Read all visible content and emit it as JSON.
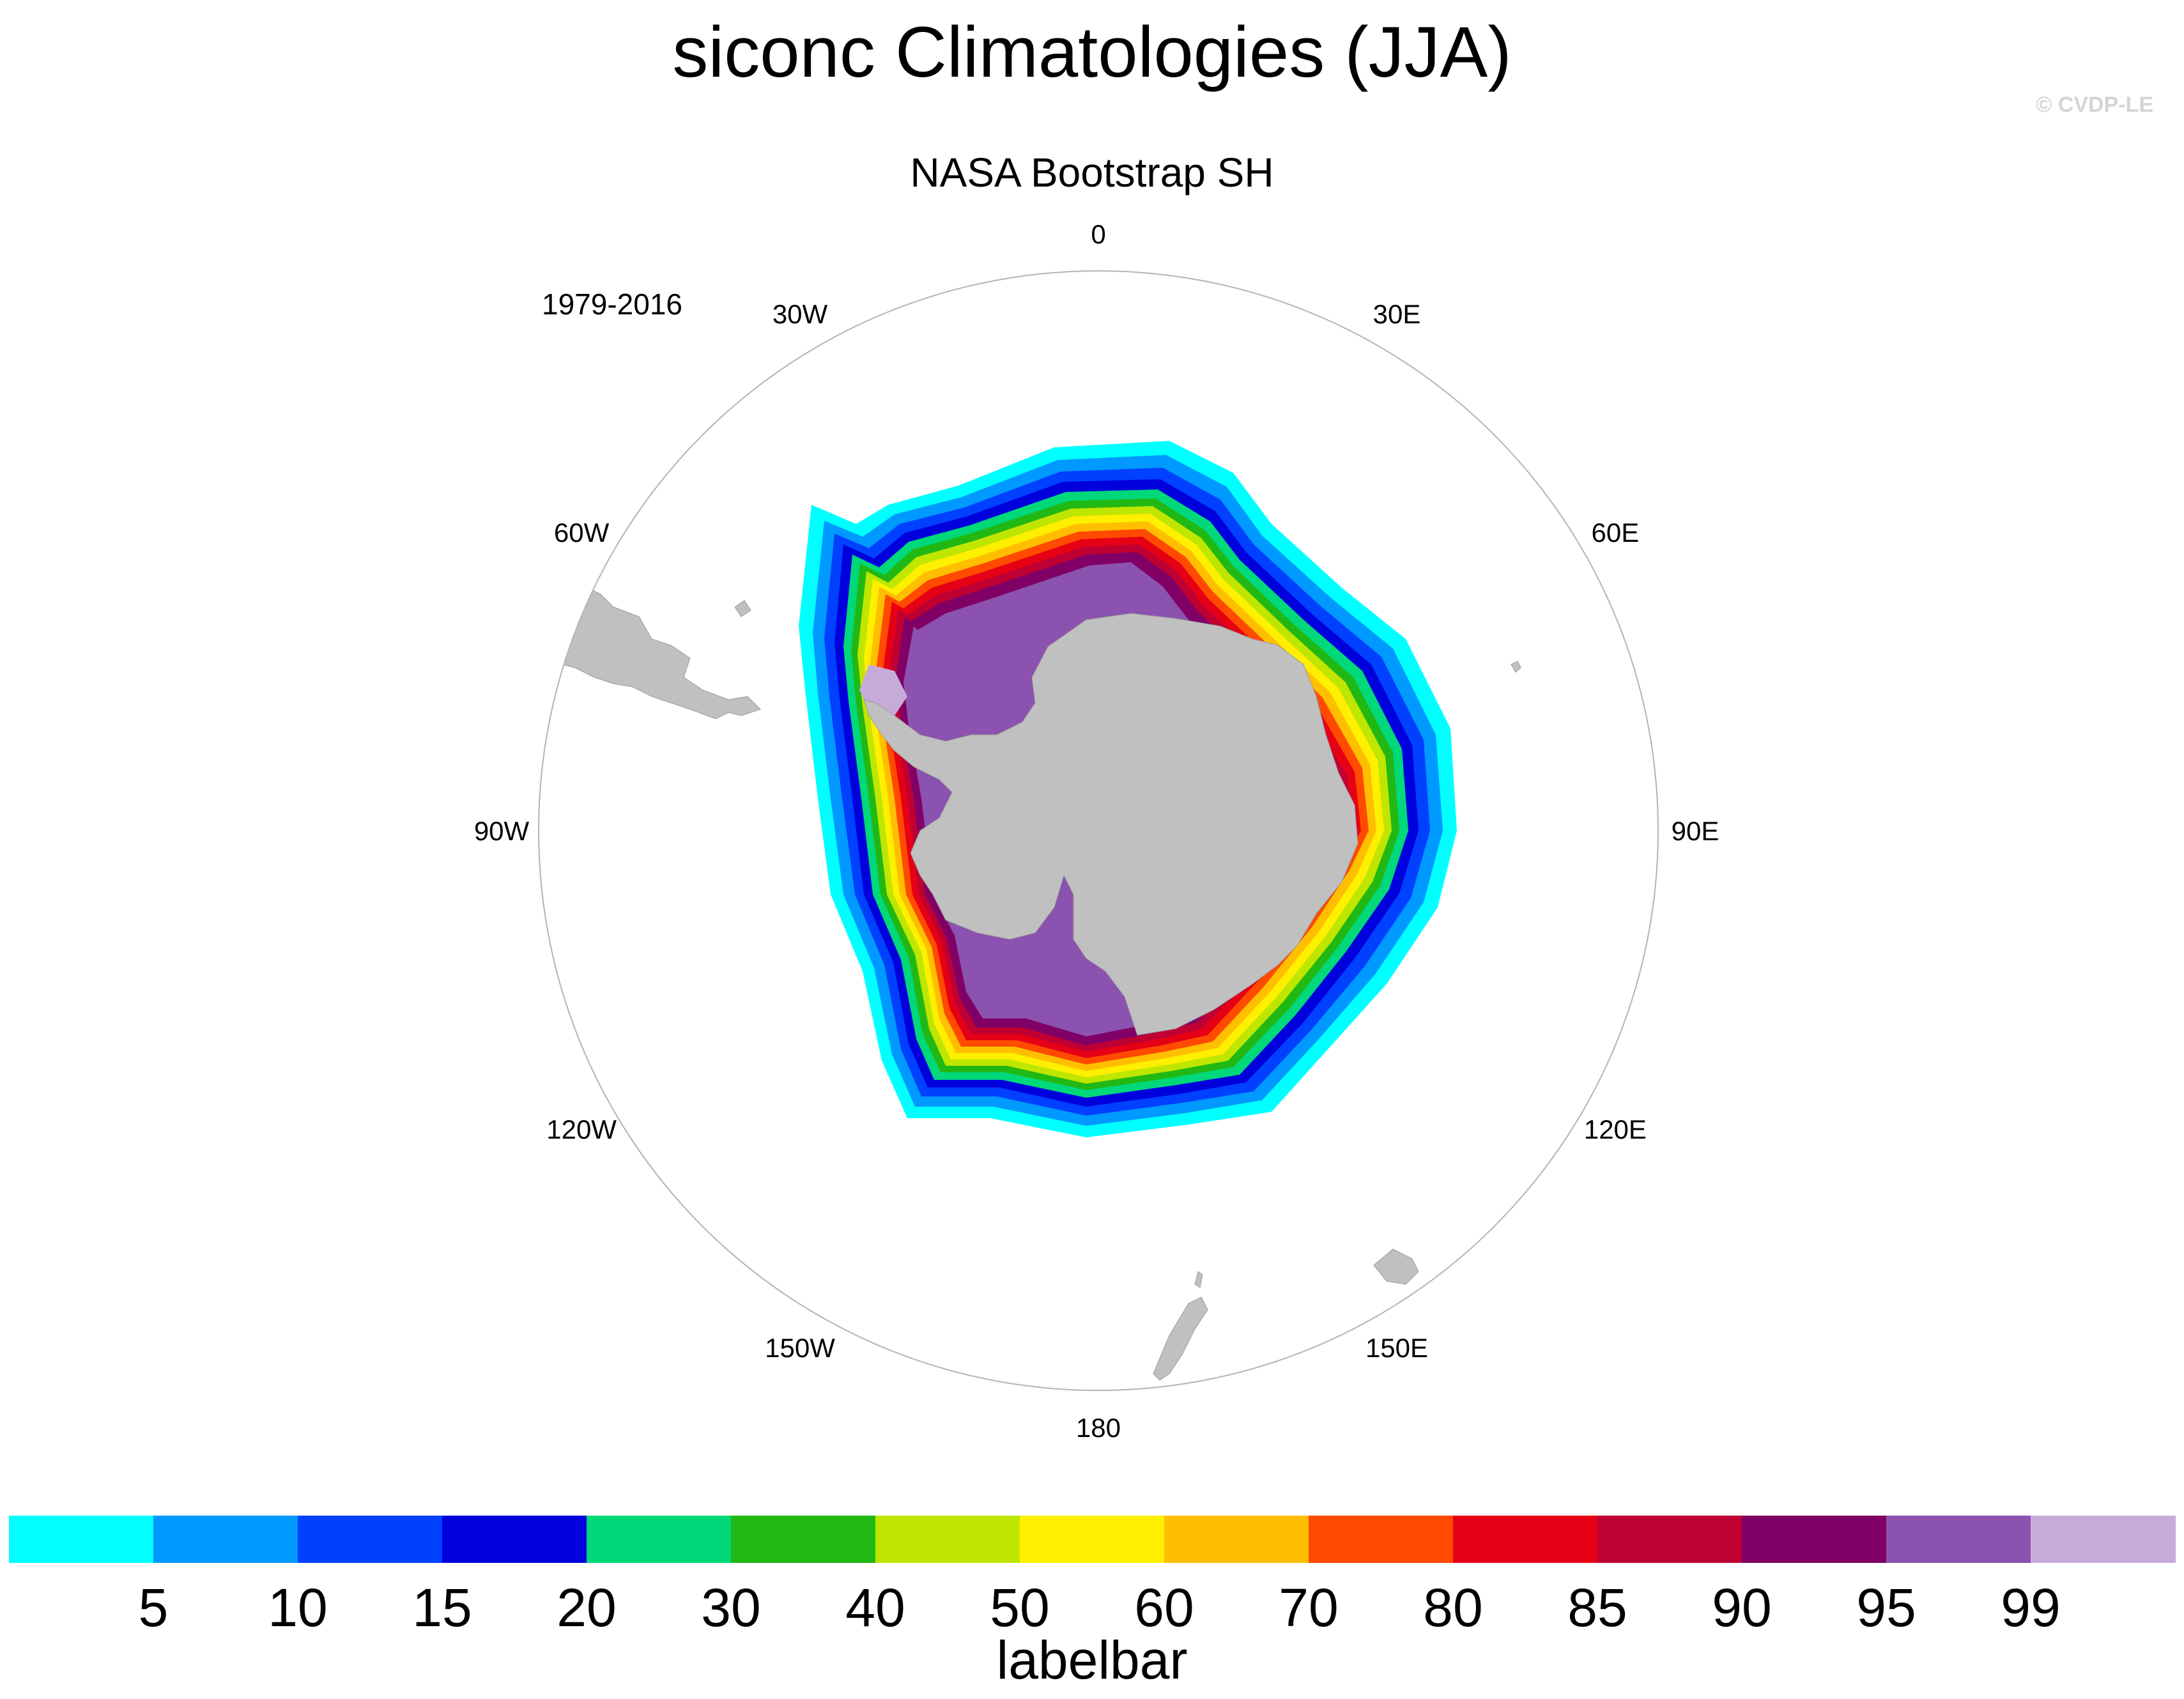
{
  "title": "siconc Climatologies (JJA)",
  "watermark": "© CVDP-LE",
  "subtitle": "NASA Bootstrap SH",
  "period": "1979-2016",
  "longitude_labels": [
    {
      "text": "0",
      "lon": 0
    },
    {
      "text": "30E",
      "lon": 30
    },
    {
      "text": "60E",
      "lon": 60
    },
    {
      "text": "90E",
      "lon": 90
    },
    {
      "text": "120E",
      "lon": 120
    },
    {
      "text": "150E",
      "lon": 150
    },
    {
      "text": "180",
      "lon": 180
    },
    {
      "text": "150W",
      "lon": -150
    },
    {
      "text": "120W",
      "lon": -120
    },
    {
      "text": "90W",
      "lon": -90
    },
    {
      "text": "60W",
      "lon": -60
    },
    {
      "text": "30W",
      "lon": -30
    }
  ],
  "colorbar": {
    "title": "labelbar",
    "ticks": [
      "5",
      "10",
      "15",
      "20",
      "30",
      "40",
      "50",
      "60",
      "70",
      "80",
      "85",
      "90",
      "95",
      "99"
    ],
    "colors": [
      "#00ffff",
      "#0099ff",
      "#0040ff",
      "#0000dd",
      "#00d87a",
      "#22b814",
      "#bfe600",
      "#ffef00",
      "#ffbf00",
      "#ff4a00",
      "#e60016",
      "#bf0032",
      "#800066",
      "#8c52b0",
      "#c6abd8"
    ]
  },
  "colors": {
    "land": "#c0c0c0",
    "map_outline": "#b4b4b4",
    "watermark": "#d4d4d4"
  }
}
